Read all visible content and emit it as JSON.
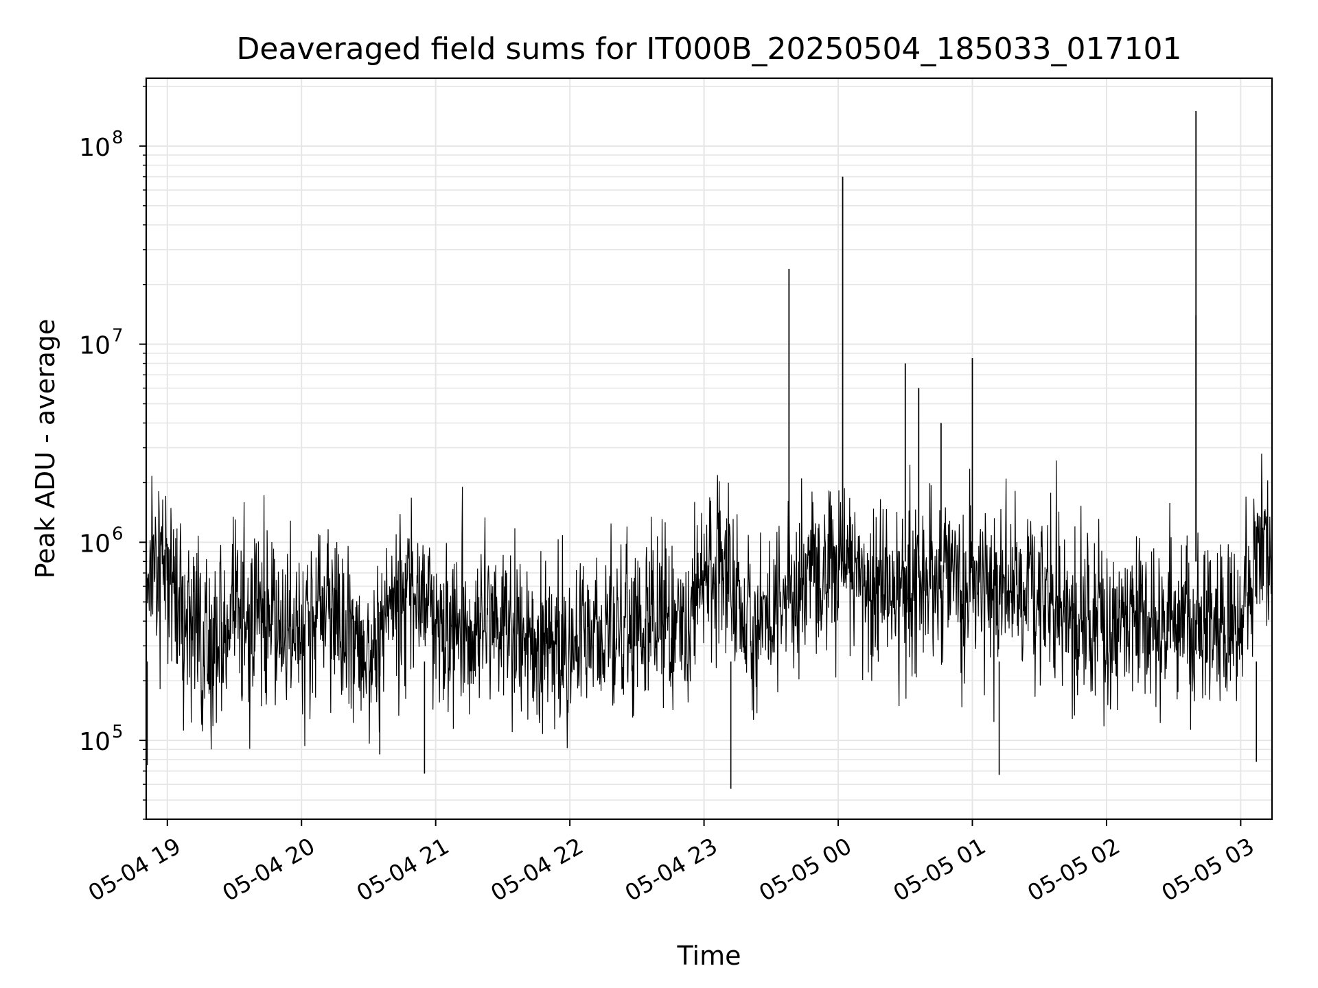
{
  "chart_data": {
    "type": "line",
    "title": "Deaveraged field sums for IT000B_20250504_185033_017101",
    "xlabel": "Time",
    "ylabel": "Peak ADU - average",
    "yscale": "log",
    "ylim": [
      40000,
      220000000
    ],
    "xlim": [
      "2025-05-04 18:50:33",
      "2025-05-05 03:14:00"
    ],
    "x_ticks": [
      {
        "t": "2025-05-04 19:00",
        "label": "05-04 19"
      },
      {
        "t": "2025-05-04 20:00",
        "label": "05-04 20"
      },
      {
        "t": "2025-05-04 21:00",
        "label": "05-04 21"
      },
      {
        "t": "2025-05-04 22:00",
        "label": "05-04 22"
      },
      {
        "t": "2025-05-04 23:00",
        "label": "05-04 23"
      },
      {
        "t": "2025-05-05 00:00",
        "label": "05-05 00"
      },
      {
        "t": "2025-05-05 01:00",
        "label": "05-05 01"
      },
      {
        "t": "2025-05-05 02:00",
        "label": "05-05 02"
      },
      {
        "t": "2025-05-05 03:00",
        "label": "05-05 03"
      }
    ],
    "y_ticks": [
      {
        "value": 100000,
        "base": "10",
        "exp": "5"
      },
      {
        "value": 1000000,
        "base": "10",
        "exp": "6"
      },
      {
        "value": 10000000,
        "base": "10",
        "exp": "7"
      },
      {
        "value": 100000000,
        "base": "10",
        "exp": "8"
      }
    ],
    "grid": true,
    "line_color": "#000000",
    "grid_color": "#e6e6e6",
    "series": [
      {
        "x": [
          "2025-05-04 18:50:33",
          "2025-05-04 19:00",
          "2025-05-04 19:10",
          "2025-05-04 19:20",
          "2025-05-04 19:30",
          "2025-05-04 19:40",
          "2025-05-04 19:50",
          "2025-05-04 20:00",
          "2025-05-04 20:10",
          "2025-05-04 20:20",
          "2025-05-04 20:30",
          "2025-05-04 20:40",
          "2025-05-04 20:50",
          "2025-05-04 21:00",
          "2025-05-04 21:10",
          "2025-05-04 21:20",
          "2025-05-04 21:30",
          "2025-05-04 21:40",
          "2025-05-04 21:50",
          "2025-05-04 22:00",
          "2025-05-04 22:10",
          "2025-05-04 22:20",
          "2025-05-04 22:30",
          "2025-05-04 22:40",
          "2025-05-04 22:50",
          "2025-05-04 23:00",
          "2025-05-04 23:10",
          "2025-05-04 23:20",
          "2025-05-04 23:30",
          "2025-05-04 23:40",
          "2025-05-04 23:50",
          "2025-05-05 00:00",
          "2025-05-05 00:10",
          "2025-05-05 00:20",
          "2025-05-05 00:30",
          "2025-05-05 00:40",
          "2025-05-05 00:50",
          "2025-05-05 01:00",
          "2025-05-05 01:10",
          "2025-05-05 01:20",
          "2025-05-05 01:30",
          "2025-05-05 01:40",
          "2025-05-05 01:50",
          "2025-05-05 02:00",
          "2025-05-05 02:10",
          "2025-05-05 02:20",
          "2025-05-05 02:30",
          "2025-05-05 02:40",
          "2025-05-05 02:50",
          "2025-05-05 03:00",
          "2025-05-05 03:10"
        ],
        "values": [
          800000,
          800000,
          400000,
          300000,
          400000,
          450000,
          450000,
          300000,
          550000,
          300000,
          250000,
          500000,
          600000,
          400000,
          350000,
          350000,
          400000,
          300000,
          300000,
          300000,
          350000,
          400000,
          350000,
          450000,
          350000,
          800000,
          700000,
          400000,
          450000,
          600000,
          700000,
          750000,
          600000,
          600000,
          550000,
          600000,
          700000,
          550000,
          600000,
          600000,
          500000,
          450000,
          400000,
          350000,
          400000,
          400000,
          400000,
          350000,
          350000,
          400000,
          1000000
        ]
      }
    ],
    "spikes": [
      {
        "x": "2025-05-04 23:38",
        "value": 24000000
      },
      {
        "x": "2025-05-05 00:02",
        "value": 70000000
      },
      {
        "x": "2025-05-05 00:30",
        "value": 8000000
      },
      {
        "x": "2025-05-05 00:36",
        "value": 6000000
      },
      {
        "x": "2025-05-05 00:46",
        "value": 4000000
      },
      {
        "x": "2025-05-05 01:00",
        "value": 8500000
      },
      {
        "x": "2025-05-05 02:40",
        "value": 150000000
      },
      {
        "x": "2025-05-05 02:40",
        "value": 14000000
      }
    ],
    "dips": [
      {
        "x": "2025-05-04 18:51",
        "value": 75000
      },
      {
        "x": "2025-05-04 20:35",
        "value": 85000
      },
      {
        "x": "2025-05-04 20:55",
        "value": 68000
      },
      {
        "x": "2025-05-04 23:12",
        "value": 57000
      },
      {
        "x": "2025-05-05 01:12",
        "value": 67000
      },
      {
        "x": "2025-05-05 03:07",
        "value": 78000
      }
    ]
  }
}
